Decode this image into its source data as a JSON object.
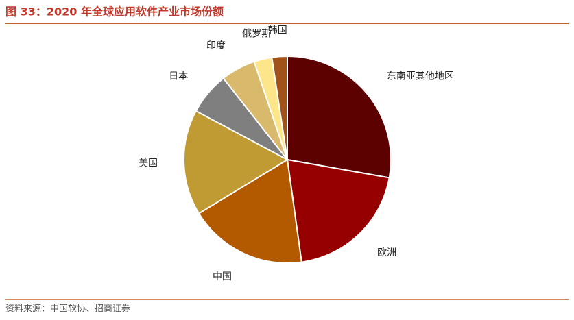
{
  "chart_data": {
    "type": "pie",
    "title": "图 33：2020 年全球应用软件产业市场份额",
    "source": "资料来源：中国软协、招商证券",
    "categories": [
      "东南亚其他地区",
      "欧洲",
      "中国",
      "美国",
      "日本",
      "印度",
      "俄罗斯",
      "韩国"
    ],
    "values": [
      27.8,
      20,
      18.5,
      16.5,
      6.6,
      5.4,
      2.8,
      2.4
    ],
    "colors": [
      "#5c0000",
      "#960000",
      "#b35a00",
      "#c09a33",
      "#7f7f7f",
      "#d9b96b",
      "#fde68a",
      "#a0521a"
    ]
  }
}
